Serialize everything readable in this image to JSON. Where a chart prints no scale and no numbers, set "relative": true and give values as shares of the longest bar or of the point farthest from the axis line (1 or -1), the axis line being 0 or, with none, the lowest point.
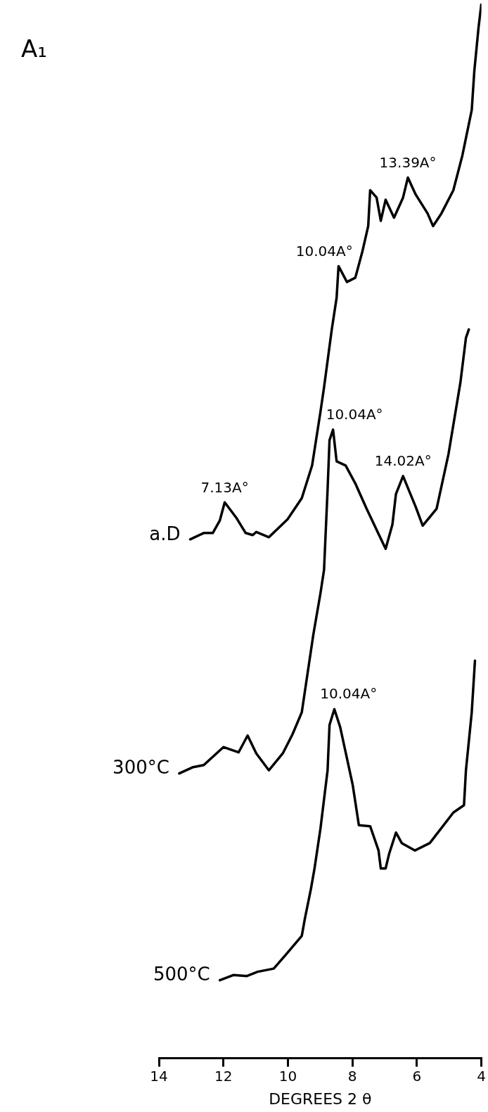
{
  "chart_data": {
    "type": "line",
    "title": "A₁",
    "xlabel": "DEGREES 2 θ",
    "relative": true,
    "xlim": [
      14,
      4
    ],
    "xticks": [
      14,
      12,
      10,
      8,
      6,
      4
    ],
    "grid": false,
    "legend": false,
    "marker": "none",
    "line_style": "solid",
    "series": [
      {
        "name": "a.D",
        "color": "#000000",
        "x": [
          13.03,
          12.61,
          12.33,
          12.11,
          11.96,
          11.59,
          11.31,
          11.09,
          10.98,
          10.59,
          10.01,
          9.57,
          9.25,
          8.99,
          8.88,
          8.64,
          8.49,
          8.43,
          8.17,
          7.91,
          7.69,
          7.51,
          7.45,
          7.25,
          7.12,
          6.97,
          6.71,
          6.43,
          6.28,
          6.04,
          5.67,
          5.5,
          5.24,
          4.87,
          4.59,
          4.3,
          4.22,
          4.09,
          4.0
        ],
        "values": [
          0.492,
          0.498,
          0.498,
          0.51,
          0.527,
          0.512,
          0.498,
          0.496,
          0.499,
          0.494,
          0.511,
          0.531,
          0.562,
          0.613,
          0.636,
          0.691,
          0.721,
          0.751,
          0.736,
          0.74,
          0.765,
          0.789,
          0.823,
          0.816,
          0.794,
          0.814,
          0.797,
          0.816,
          0.835,
          0.819,
          0.801,
          0.789,
          0.801,
          0.823,
          0.856,
          0.899,
          0.936,
          0.977,
          1.0
        ]
      },
      {
        "name": "300°C",
        "color": "#000000",
        "x": [
          13.37,
          12.94,
          12.61,
          12.0,
          11.53,
          11.25,
          10.98,
          10.59,
          10.16,
          9.86,
          9.57,
          9.4,
          9.21,
          8.99,
          8.88,
          8.77,
          8.71,
          8.6,
          8.49,
          8.21,
          7.91,
          7.56,
          6.97,
          6.76,
          6.65,
          6.43,
          6.04,
          5.82,
          5.39,
          5.02,
          4.65,
          4.48,
          4.39
        ],
        "values": [
          0.27,
          0.276,
          0.278,
          0.295,
          0.29,
          0.306,
          0.289,
          0.273,
          0.289,
          0.307,
          0.328,
          0.363,
          0.402,
          0.441,
          0.463,
          0.539,
          0.586,
          0.596,
          0.566,
          0.562,
          0.545,
          0.521,
          0.483,
          0.506,
          0.535,
          0.552,
          0.523,
          0.505,
          0.521,
          0.573,
          0.641,
          0.683,
          0.691
        ]
      },
      {
        "name": "500°C",
        "color": "#000000",
        "x": [
          12.11,
          11.68,
          11.27,
          10.94,
          10.44,
          10.07,
          9.57,
          9.47,
          9.29,
          9.18,
          8.99,
          8.77,
          8.71,
          8.56,
          8.38,
          7.99,
          7.8,
          7.45,
          7.19,
          7.12,
          6.97,
          6.86,
          6.65,
          6.47,
          6.06,
          5.6,
          4.87,
          4.54,
          4.48,
          4.3,
          4.2
        ],
        "values": [
          0.074,
          0.079,
          0.078,
          0.082,
          0.085,
          0.098,
          0.116,
          0.133,
          0.16,
          0.179,
          0.218,
          0.273,
          0.316,
          0.331,
          0.314,
          0.259,
          0.221,
          0.22,
          0.197,
          0.18,
          0.18,
          0.194,
          0.214,
          0.204,
          0.197,
          0.204,
          0.233,
          0.24,
          0.273,
          0.328,
          0.377
        ]
      }
    ],
    "annotations": [
      {
        "text": "13.39A°",
        "x": 6.28,
        "y": 0.835
      },
      {
        "text": "10.04A°",
        "x": 8.43,
        "y": 0.751
      },
      {
        "text": "7.13A°",
        "x": 11.96,
        "y": 0.527
      },
      {
        "text": "10.04A°",
        "x": 8.6,
        "y": 0.596
      },
      {
        "text": "14.02A°",
        "x": 6.43,
        "y": 0.552
      },
      {
        "text": "10.04A°",
        "x": 8.56,
        "y": 0.331
      }
    ]
  }
}
